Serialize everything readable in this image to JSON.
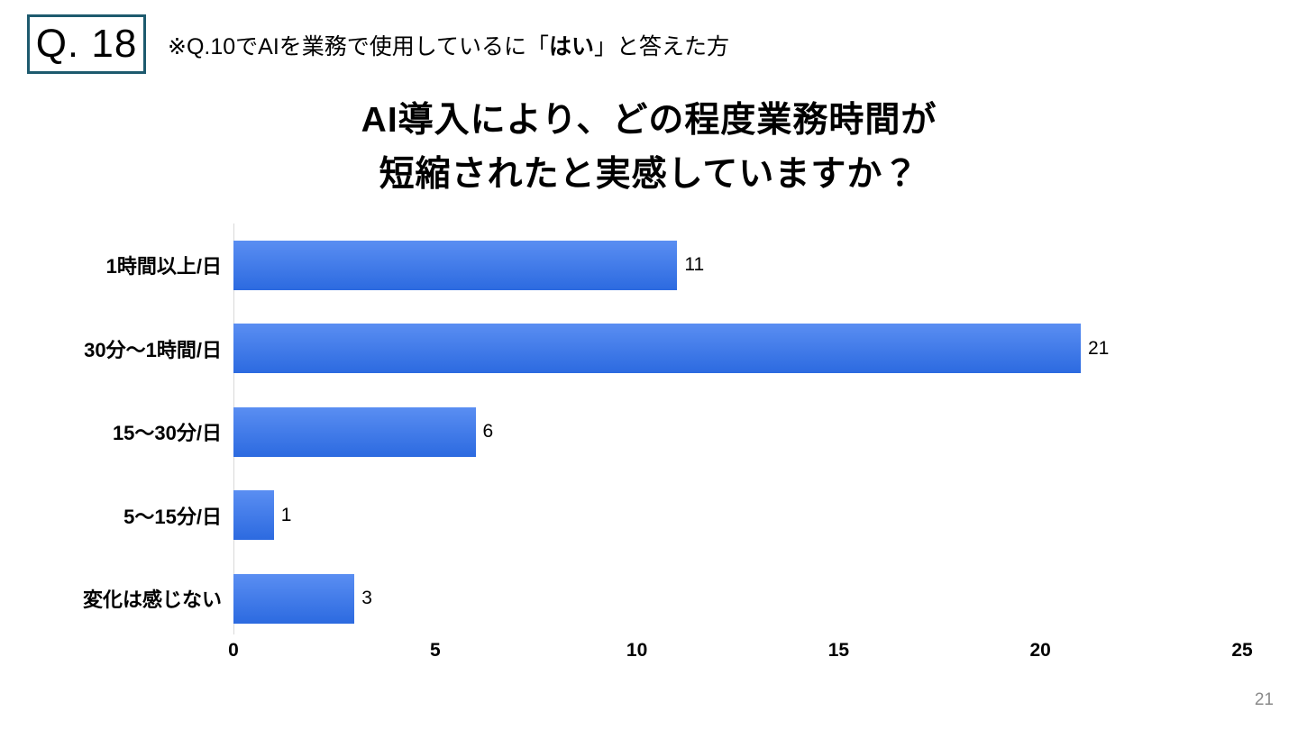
{
  "header": {
    "q_label": "Q. 18",
    "note_pre": "※Q.10でAIを業務で使用しているに「",
    "note_bold": "はい",
    "note_post": "」と答えた方"
  },
  "title": {
    "line1": "AI導入により、どの程度業務時間が",
    "line2": "短縮されたと実感していますか？"
  },
  "chart_data": {
    "type": "bar",
    "orientation": "horizontal",
    "title": "AI導入により、どの程度業務時間が短縮されたと実感していますか？",
    "categories": [
      "1時間以上/日",
      "30分～1時間/日",
      "15～30分/日",
      "5～15分/日",
      "変化は感じない"
    ],
    "values": [
      11,
      21,
      6,
      1,
      3
    ],
    "xlim": [
      0,
      25
    ],
    "x_ticks": [
      0,
      5,
      10,
      15,
      20,
      25
    ],
    "grid": false,
    "value_labels": true,
    "bar_color_top": "#5a8ef2",
    "bar_color_bottom": "#2c6ae0",
    "axis_line_color": "#d9d9d9"
  },
  "footer": {
    "page_number": "21"
  }
}
